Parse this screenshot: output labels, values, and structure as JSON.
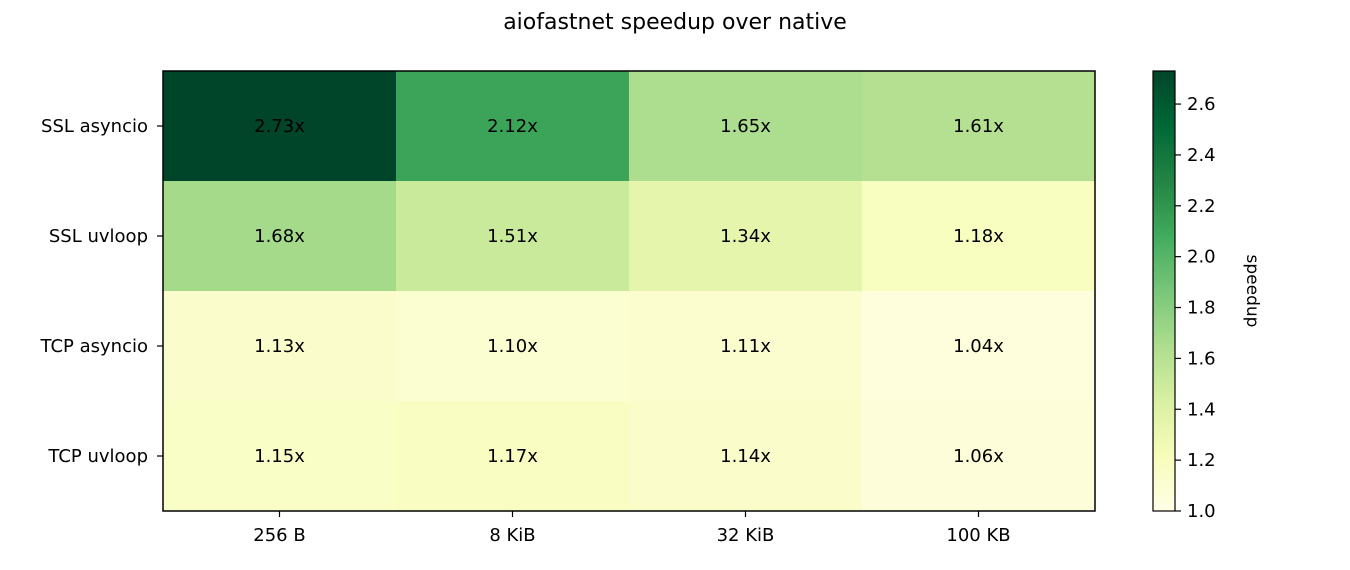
{
  "chart_data": {
    "type": "heatmap",
    "title": "aiofastnet speedup over native",
    "x_categories": [
      "256 B",
      "8 KiB",
      "32 KiB",
      "100 KB"
    ],
    "y_categories": [
      "SSL asyncio",
      "SSL uvloop",
      "TCP asyncio",
      "TCP uvloop"
    ],
    "values": [
      [
        2.73,
        2.12,
        1.65,
        1.61
      ],
      [
        1.68,
        1.51,
        1.34,
        1.18
      ],
      [
        1.13,
        1.1,
        1.11,
        1.04
      ],
      [
        1.15,
        1.17,
        1.14,
        1.06
      ]
    ],
    "cell_labels": [
      [
        "2.73x",
        "2.12x",
        "1.65x",
        "1.61x"
      ],
      [
        "1.68x",
        "1.51x",
        "1.34x",
        "1.18x"
      ],
      [
        "1.13x",
        "1.10x",
        "1.11x",
        "1.04x"
      ],
      [
        "1.15x",
        "1.17x",
        "1.14x",
        "1.06x"
      ]
    ],
    "colorbar": {
      "label": "speedup",
      "range": [
        1.0,
        2.73
      ],
      "ticks": [
        1.0,
        1.2,
        1.4,
        1.6,
        1.8,
        2.0,
        2.2,
        2.4,
        2.6
      ],
      "tick_labels": [
        "1.0",
        "1.2",
        "1.4",
        "1.6",
        "1.8",
        "2.0",
        "2.2",
        "2.4",
        "2.6"
      ],
      "colormap": "YlGn",
      "colormap_stops": [
        "#ffffe5",
        "#f7fcb9",
        "#d9f0a3",
        "#addd8e",
        "#78c679",
        "#41ab5d",
        "#238443",
        "#006837",
        "#004529"
      ]
    },
    "grid": false
  }
}
